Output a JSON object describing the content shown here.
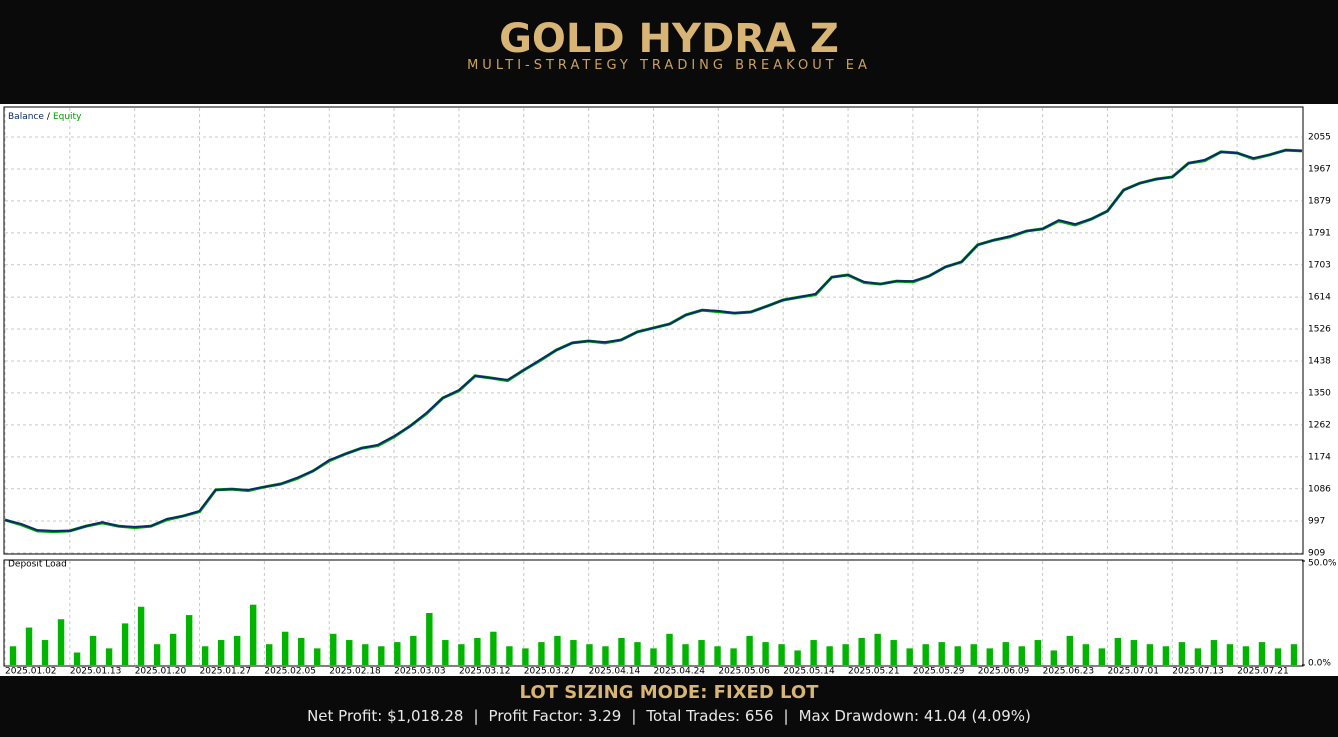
{
  "header": {
    "title": "GOLD HYDRA Z",
    "subtitle": "MULTI-STRATEGY TRADING BREAKOUT EA"
  },
  "chart_data": [
    {
      "type": "line",
      "legend_separator": "/",
      "grid": true,
      "categories": [
        "2025.01.02",
        null,
        null,
        null,
        "2025.01.13",
        null,
        null,
        null,
        "2025.01.20",
        null,
        null,
        null,
        "2025.01.27",
        null,
        null,
        null,
        "2025.02.05",
        null,
        null,
        null,
        "2025.02.18",
        null,
        null,
        null,
        "2025.03.03",
        null,
        null,
        null,
        "2025.03.12",
        null,
        null,
        null,
        "2025.03.27",
        null,
        null,
        null,
        "2025.04.14",
        null,
        null,
        null,
        "2025.04.24",
        null,
        null,
        null,
        "2025.05.06",
        null,
        null,
        null,
        "2025.05.14",
        null,
        null,
        null,
        "2025.05.21",
        null,
        null,
        null,
        "2025.05.29",
        null,
        null,
        null,
        "2025.06.09",
        null,
        null,
        null,
        "2025.06.23",
        null,
        null,
        null,
        "2025.07.01",
        null,
        null,
        null,
        "2025.07.13",
        null,
        null,
        null,
        "2025.07.21",
        null,
        null,
        null,
        null
      ],
      "ylim": [
        909,
        2135
      ],
      "yticks": [
        909,
        997,
        1086,
        1174,
        1262,
        1350,
        1438,
        1526,
        1614,
        1703,
        1791,
        1879,
        1967,
        2055
      ],
      "series": [
        {
          "name": "Equity",
          "color": "#00a000",
          "values": [
            1000,
            987,
            970,
            968,
            970,
            983,
            992,
            983,
            979,
            983,
            1001,
            1011,
            1023,
            1083,
            1085,
            1081,
            1091,
            1099,
            1114,
            1135,
            1163,
            1182,
            1198,
            1205,
            1229,
            1259,
            1293,
            1336,
            1356,
            1397,
            1391,
            1384,
            1413,
            1439,
            1468,
            1488,
            1493,
            1488,
            1496,
            1518,
            1529,
            1540,
            1565,
            1578,
            1574,
            1570,
            1573,
            1589,
            1606,
            1614,
            1621,
            1669,
            1675,
            1654,
            1650,
            1658,
            1656,
            1672,
            1697,
            1711,
            1758,
            1771,
            1780,
            1796,
            1802,
            1824,
            1813,
            1829,
            1851,
            1909,
            1928,
            1939,
            1945,
            1983,
            1990,
            2014,
            2011,
            1995,
            2006,
            2019,
            2017
          ]
        },
        {
          "name": "Balance",
          "color": "#0a2a6e",
          "values": [
            1000,
            989,
            972,
            970,
            970,
            983,
            994,
            983,
            981,
            983,
            1003,
            1011,
            1025,
            1083,
            1085,
            1083,
            1091,
            1099,
            1116,
            1135,
            1165,
            1182,
            1198,
            1207,
            1231,
            1259,
            1295,
            1336,
            1358,
            1397,
            1391,
            1386,
            1413,
            1441,
            1468,
            1488,
            1493,
            1490,
            1496,
            1518,
            1529,
            1540,
            1565,
            1578,
            1576,
            1570,
            1573,
            1589,
            1606,
            1614,
            1623,
            1669,
            1675,
            1656,
            1650,
            1658,
            1658,
            1672,
            1697,
            1711,
            1758,
            1771,
            1782,
            1796,
            1802,
            1826,
            1815,
            1829,
            1851,
            1909,
            1928,
            1939,
            1945,
            1983,
            1992,
            2014,
            2011,
            1997,
            2006,
            2019,
            2017
          ]
        }
      ]
    },
    {
      "type": "bar",
      "title": "Deposit Load",
      "color": "#00b400",
      "ylim": [
        0,
        50
      ],
      "yticks": [
        {
          "value": 0,
          "label": "0.0%"
        },
        {
          "value": 50,
          "label": "50.0%"
        }
      ],
      "values": [
        9,
        18,
        12,
        22,
        6,
        14,
        8,
        20,
        28,
        10,
        15,
        24,
        9,
        12,
        14,
        29,
        10,
        16,
        13,
        8,
        15,
        12,
        10,
        9,
        11,
        14,
        25,
        12,
        10,
        13,
        16,
        9,
        8,
        11,
        14,
        12,
        10,
        9,
        13,
        11,
        8,
        15,
        10,
        12,
        9,
        8,
        14,
        11,
        10,
        7,
        12,
        9,
        10,
        13,
        15,
        12,
        8,
        10,
        11,
        9,
        10,
        8,
        11,
        9,
        12,
        7,
        14,
        10,
        8,
        13,
        12,
        10,
        9,
        11,
        8,
        12,
        10,
        9,
        11,
        8,
        10
      ]
    }
  ],
  "footer": {
    "mode": "LOT SIZING MODE: FIXED LOT",
    "separator": "|",
    "stats": [
      "Net Profit: $1,018.28",
      "Profit Factor: 3.29",
      "Total Trades: 656",
      "Max Drawdown: 41.04 (4.09%)"
    ]
  }
}
